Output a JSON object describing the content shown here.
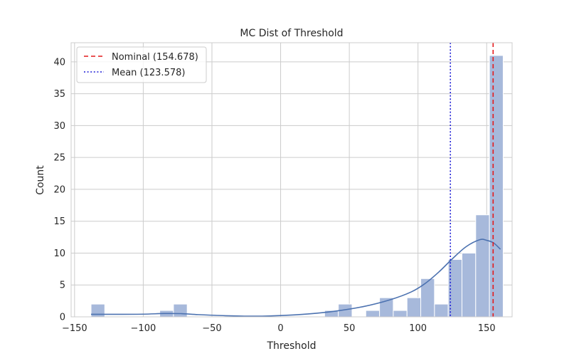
{
  "chart_data": {
    "type": "bar",
    "title": "MC Dist of Threshold",
    "xlabel": "Threshold",
    "ylabel": "Count",
    "xlim": [
      -152.5,
      168.5
    ],
    "ylim": [
      0,
      43
    ],
    "xticks": [
      -150,
      -100,
      -50,
      0,
      50,
      100,
      150
    ],
    "xtick_labels": [
      "−150",
      "−100",
      "−50",
      "0",
      "50",
      "100",
      "150"
    ],
    "yticks": [
      0,
      5,
      10,
      15,
      20,
      25,
      30,
      35,
      40
    ],
    "ytick_labels": [
      "0",
      "5",
      "10",
      "15",
      "20",
      "25",
      "30",
      "35",
      "40"
    ],
    "grid": true,
    "legend_position": "top-left",
    "bin_width": 10,
    "bins": [
      {
        "x0": -138,
        "x1": -128,
        "count": 2
      },
      {
        "x0": -88,
        "x1": -78,
        "count": 1
      },
      {
        "x0": -78,
        "x1": -68,
        "count": 2
      },
      {
        "x0": 32,
        "x1": 42,
        "count": 1
      },
      {
        "x0": 42,
        "x1": 52,
        "count": 2
      },
      {
        "x0": 62,
        "x1": 72,
        "count": 1
      },
      {
        "x0": 72,
        "x1": 82,
        "count": 3
      },
      {
        "x0": 82,
        "x1": 92,
        "count": 1
      },
      {
        "x0": 92,
        "x1": 102,
        "count": 3
      },
      {
        "x0": 102,
        "x1": 112,
        "count": 6
      },
      {
        "x0": 112,
        "x1": 122,
        "count": 2
      },
      {
        "x0": 122,
        "x1": 132,
        "count": 9
      },
      {
        "x0": 132,
        "x1": 142,
        "count": 10
      },
      {
        "x0": 142,
        "x1": 152,
        "count": 16
      },
      {
        "x0": 152,
        "x1": 162,
        "count": 41
      }
    ],
    "kde": {
      "x": [
        -138,
        -120,
        -100,
        -85,
        -72,
        -60,
        -40,
        -20,
        0,
        20,
        40,
        60,
        80,
        95,
        105,
        115,
        125,
        135,
        145,
        150,
        155,
        160
      ],
      "y": [
        0.4,
        0.4,
        0.42,
        0.52,
        0.5,
        0.35,
        0.18,
        0.1,
        0.2,
        0.45,
        0.9,
        1.6,
        2.7,
        3.9,
        5.2,
        7.0,
        9.1,
        11.0,
        12.1,
        12.0,
        11.6,
        10.6
      ]
    },
    "lines": [
      {
        "label": "Nominal (154.678)",
        "x": 154.678,
        "style": "dashed",
        "color": "#e41a1c"
      },
      {
        "label": "Mean (123.578)",
        "x": 123.578,
        "style": "dotted",
        "color": "#1f1fd6"
      }
    ],
    "colors": {
      "bar_fill": "#a7b9db",
      "bar_stroke": "#ffffff",
      "kde_line": "#4c72b0",
      "grid": "#cccccc",
      "frame": "#cccccc"
    }
  }
}
